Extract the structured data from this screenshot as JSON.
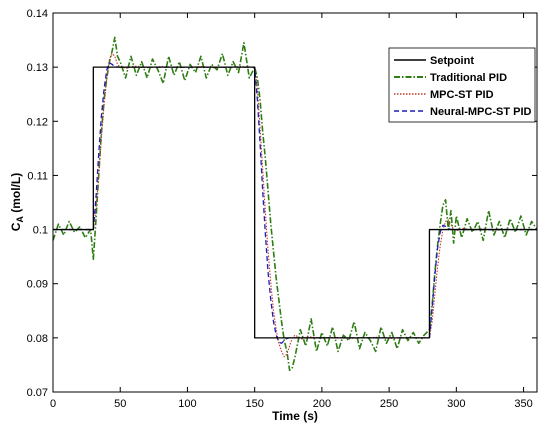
{
  "chart_data": {
    "type": "line",
    "xlabel": "Time (s)",
    "ylabel": "C",
    "ylabel_sub": "A",
    "ylabel_unit": " (mol/L)",
    "xlim": [
      0,
      360
    ],
    "ylim": [
      0.07,
      0.14
    ],
    "xticks": [
      "0",
      "50",
      "100",
      "150",
      "200",
      "250",
      "300",
      "350"
    ],
    "yticks": [
      "0.07",
      "0.08",
      "0.09",
      "0.1",
      "0.11",
      "0.12",
      "0.13",
      "0.14"
    ],
    "legend_position": "top-right",
    "grid": false,
    "series": [
      {
        "name": "Setpoint",
        "color": "#000000",
        "style": "solid",
        "x": [
          0,
          30,
          30,
          150,
          150,
          280,
          280,
          360
        ],
        "y": [
          0.1,
          0.1,
          0.13,
          0.13,
          0.08,
          0.08,
          0.1,
          0.1
        ]
      },
      {
        "name": "Traditional PID",
        "color": "#2e7d12",
        "style": "dashdot",
        "x": [
          0,
          4,
          8,
          12,
          16,
          20,
          24,
          28,
          30,
          32,
          34,
          36,
          38,
          40,
          42,
          44,
          46,
          48,
          50,
          54,
          58,
          62,
          66,
          70,
          74,
          78,
          82,
          86,
          90,
          94,
          98,
          102,
          106,
          110,
          114,
          118,
          122,
          126,
          130,
          134,
          138,
          142,
          146,
          150,
          152,
          154,
          156,
          158,
          160,
          162,
          164,
          166,
          168,
          170,
          172,
          174,
          176,
          178,
          180,
          184,
          188,
          192,
          196,
          200,
          204,
          208,
          212,
          216,
          220,
          224,
          228,
          232,
          236,
          240,
          244,
          248,
          252,
          256,
          260,
          264,
          268,
          272,
          276,
          280,
          282,
          284,
          286,
          288,
          290,
          292,
          294,
          296,
          298,
          300,
          304,
          308,
          312,
          316,
          320,
          324,
          328,
          332,
          336,
          340,
          344,
          348,
          352,
          356,
          360
        ],
        "y": [
          0.098,
          0.101,
          0.099,
          0.1015,
          0.0995,
          0.1005,
          0.0985,
          0.1,
          0.0945,
          0.102,
          0.11,
          0.118,
          0.124,
          0.128,
          0.131,
          0.133,
          0.1355,
          0.132,
          0.131,
          0.128,
          0.132,
          0.1285,
          0.131,
          0.128,
          0.1315,
          0.1295,
          0.127,
          0.132,
          0.1285,
          0.131,
          0.1275,
          0.1305,
          0.129,
          0.132,
          0.128,
          0.1305,
          0.1295,
          0.1325,
          0.1285,
          0.131,
          0.129,
          0.1345,
          0.128,
          0.13,
          0.128,
          0.124,
          0.118,
          0.113,
          0.107,
          0.101,
          0.096,
          0.091,
          0.087,
          0.083,
          0.0795,
          0.0775,
          0.074,
          0.0745,
          0.0765,
          0.0815,
          0.0785,
          0.0835,
          0.0775,
          0.081,
          0.0785,
          0.082,
          0.0775,
          0.0805,
          0.0795,
          0.083,
          0.078,
          0.081,
          0.0795,
          0.0775,
          0.082,
          0.079,
          0.081,
          0.078,
          0.0815,
          0.0795,
          0.081,
          0.079,
          0.0805,
          0.0815,
          0.086,
          0.092,
          0.097,
          0.101,
          0.1045,
          0.1055,
          0.1,
          0.1035,
          0.0975,
          0.1025,
          0.0985,
          0.102,
          0.0995,
          0.1015,
          0.098,
          0.1035,
          0.099,
          0.1015,
          0.0985,
          0.102,
          0.0995,
          0.1025,
          0.099,
          0.1015,
          0.1
        ]
      },
      {
        "name": "MPC-ST PID",
        "color": "#c0392b",
        "style": "dotted",
        "x": [
          0,
          28,
          30,
          32,
          34,
          36,
          38,
          40,
          42,
          44,
          46,
          48,
          50,
          55,
          60,
          70,
          80,
          90,
          100,
          110,
          120,
          130,
          140,
          150,
          152,
          154,
          156,
          158,
          160,
          162,
          164,
          166,
          168,
          170,
          172,
          174,
          176,
          178,
          180,
          185,
          190,
          200,
          210,
          220,
          230,
          240,
          250,
          260,
          270,
          280,
          282,
          284,
          286,
          288,
          290,
          292,
          294,
          296,
          298,
          300,
          305,
          310,
          320,
          330,
          340,
          350,
          360
        ],
        "y": [
          0.1,
          0.1,
          0.1,
          0.104,
          0.11,
          0.117,
          0.123,
          0.128,
          0.1315,
          0.1325,
          0.132,
          0.1305,
          0.13,
          0.1298,
          0.1302,
          0.1299,
          0.1301,
          0.13,
          0.13,
          0.1301,
          0.1299,
          0.13,
          0.1301,
          0.13,
          0.126,
          0.119,
          0.111,
          0.103,
          0.096,
          0.09,
          0.085,
          0.0815,
          0.079,
          0.0775,
          0.0765,
          0.077,
          0.0785,
          0.08,
          0.0805,
          0.0798,
          0.0802,
          0.08,
          0.0801,
          0.0799,
          0.08,
          0.0801,
          0.0799,
          0.08,
          0.08,
          0.08,
          0.083,
          0.088,
          0.093,
          0.097,
          0.1,
          0.1015,
          0.1018,
          0.101,
          0.1,
          0.0998,
          0.1002,
          0.1,
          0.1001,
          0.0999,
          0.1,
          0.1,
          0.1
        ]
      },
      {
        "name": "Neural-MPC-ST PID",
        "color": "#1f1fb4",
        "style": "dashed",
        "x": [
          0,
          28,
          30,
          32,
          34,
          36,
          38,
          40,
          42,
          44,
          46,
          50,
          60,
          80,
          100,
          120,
          140,
          150,
          152,
          154,
          156,
          158,
          160,
          162,
          164,
          166,
          168,
          170,
          172,
          174,
          176,
          180,
          190,
          200,
          220,
          240,
          260,
          280,
          282,
          284,
          286,
          288,
          290,
          292,
          294,
          296,
          300,
          320,
          340,
          360
        ],
        "y": [
          0.1,
          0.1,
          0.1,
          0.106,
          0.114,
          0.121,
          0.126,
          0.1295,
          0.1308,
          0.1305,
          0.1301,
          0.13,
          0.13,
          0.13,
          0.13,
          0.13,
          0.13,
          0.13,
          0.124,
          0.116,
          0.107,
          0.099,
          0.092,
          0.087,
          0.083,
          0.0805,
          0.0792,
          0.079,
          0.0795,
          0.0799,
          0.08,
          0.08,
          0.08,
          0.08,
          0.08,
          0.08,
          0.08,
          0.08,
          0.0855,
          0.0915,
          0.0965,
          0.0995,
          0.1008,
          0.1006,
          0.1002,
          0.1,
          0.1,
          0.1,
          0.1,
          0.1
        ]
      }
    ]
  }
}
